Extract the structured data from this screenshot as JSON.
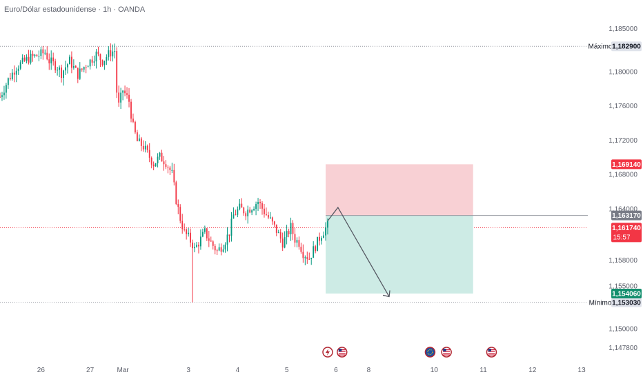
{
  "header": {
    "title": "Euro/Dólar estadounidense · 1h · OANDA"
  },
  "colors": {
    "up": "#089981",
    "down": "#f23645",
    "grid_line": "#9598a1",
    "stop_zone": "#f8d0d4",
    "target_zone": "#cdebe5",
    "entry_badge": "#787b86",
    "target_badge": "#138f6e",
    "stop_badge": "#f23645",
    "current_badge": "#f23645",
    "text_muted": "#5d606b",
    "arrow": "#555862"
  },
  "chart_data": {
    "type": "candlestick",
    "title": "Euro/Dólar estadounidense · 1h · OANDA",
    "ylim": [
      1.1465,
      1.1875
    ],
    "y_ticks": [
      "1,185000",
      "1,180000",
      "1,176000",
      "1,172000",
      "1,168000",
      "1,164000",
      "1,158000",
      "1,155000",
      "1,150000",
      "1,147800"
    ],
    "y_tick_values": [
      1.185,
      1.18,
      1.176,
      1.172,
      1.168,
      1.164,
      1.158,
      1.155,
      1.15,
      1.1478
    ],
    "x_ticks": [
      "26",
      "27",
      "Mar",
      "3",
      "4",
      "5",
      "6",
      "8",
      "10",
      "11",
      "12",
      "13"
    ],
    "x_tick_values": [
      0,
      24,
      40,
      72,
      96,
      120,
      144,
      160,
      192,
      216,
      240,
      264
    ],
    "xlim": [
      -20,
      267
    ],
    "candles": [],
    "price_levels": {
      "max": {
        "label": "Máximo",
        "value": "1,182900",
        "price": 1.1829
      },
      "min": {
        "label": "Mínimo",
        "value": "1,153030",
        "price": 1.15303
      },
      "current": {
        "value": "1,161740",
        "countdown": "15:57",
        "price": 1.16174
      }
    },
    "position_tool": {
      "type": "short",
      "start_x": 139,
      "end_x": 211,
      "stop": {
        "value": "1,169140",
        "price": 1.16914
      },
      "entry": {
        "value": "1,163170",
        "price": 1.16317
      },
      "target": {
        "value": "1,154060",
        "price": 1.15406
      }
    },
    "projection": [
      {
        "x": 145,
        "y": 1.1641
      },
      {
        "x": 170,
        "y": 1.1537
      }
    ],
    "events": [
      {
        "x": 140,
        "icon": "lightning-icon"
      },
      {
        "x": 147,
        "icon": "us-flag-icon"
      },
      {
        "x": 190,
        "icon": "eu-flag-icon"
      },
      {
        "x": 198,
        "icon": "us-flag-icon"
      },
      {
        "x": 220,
        "icon": "us-flag-icon"
      }
    ]
  }
}
